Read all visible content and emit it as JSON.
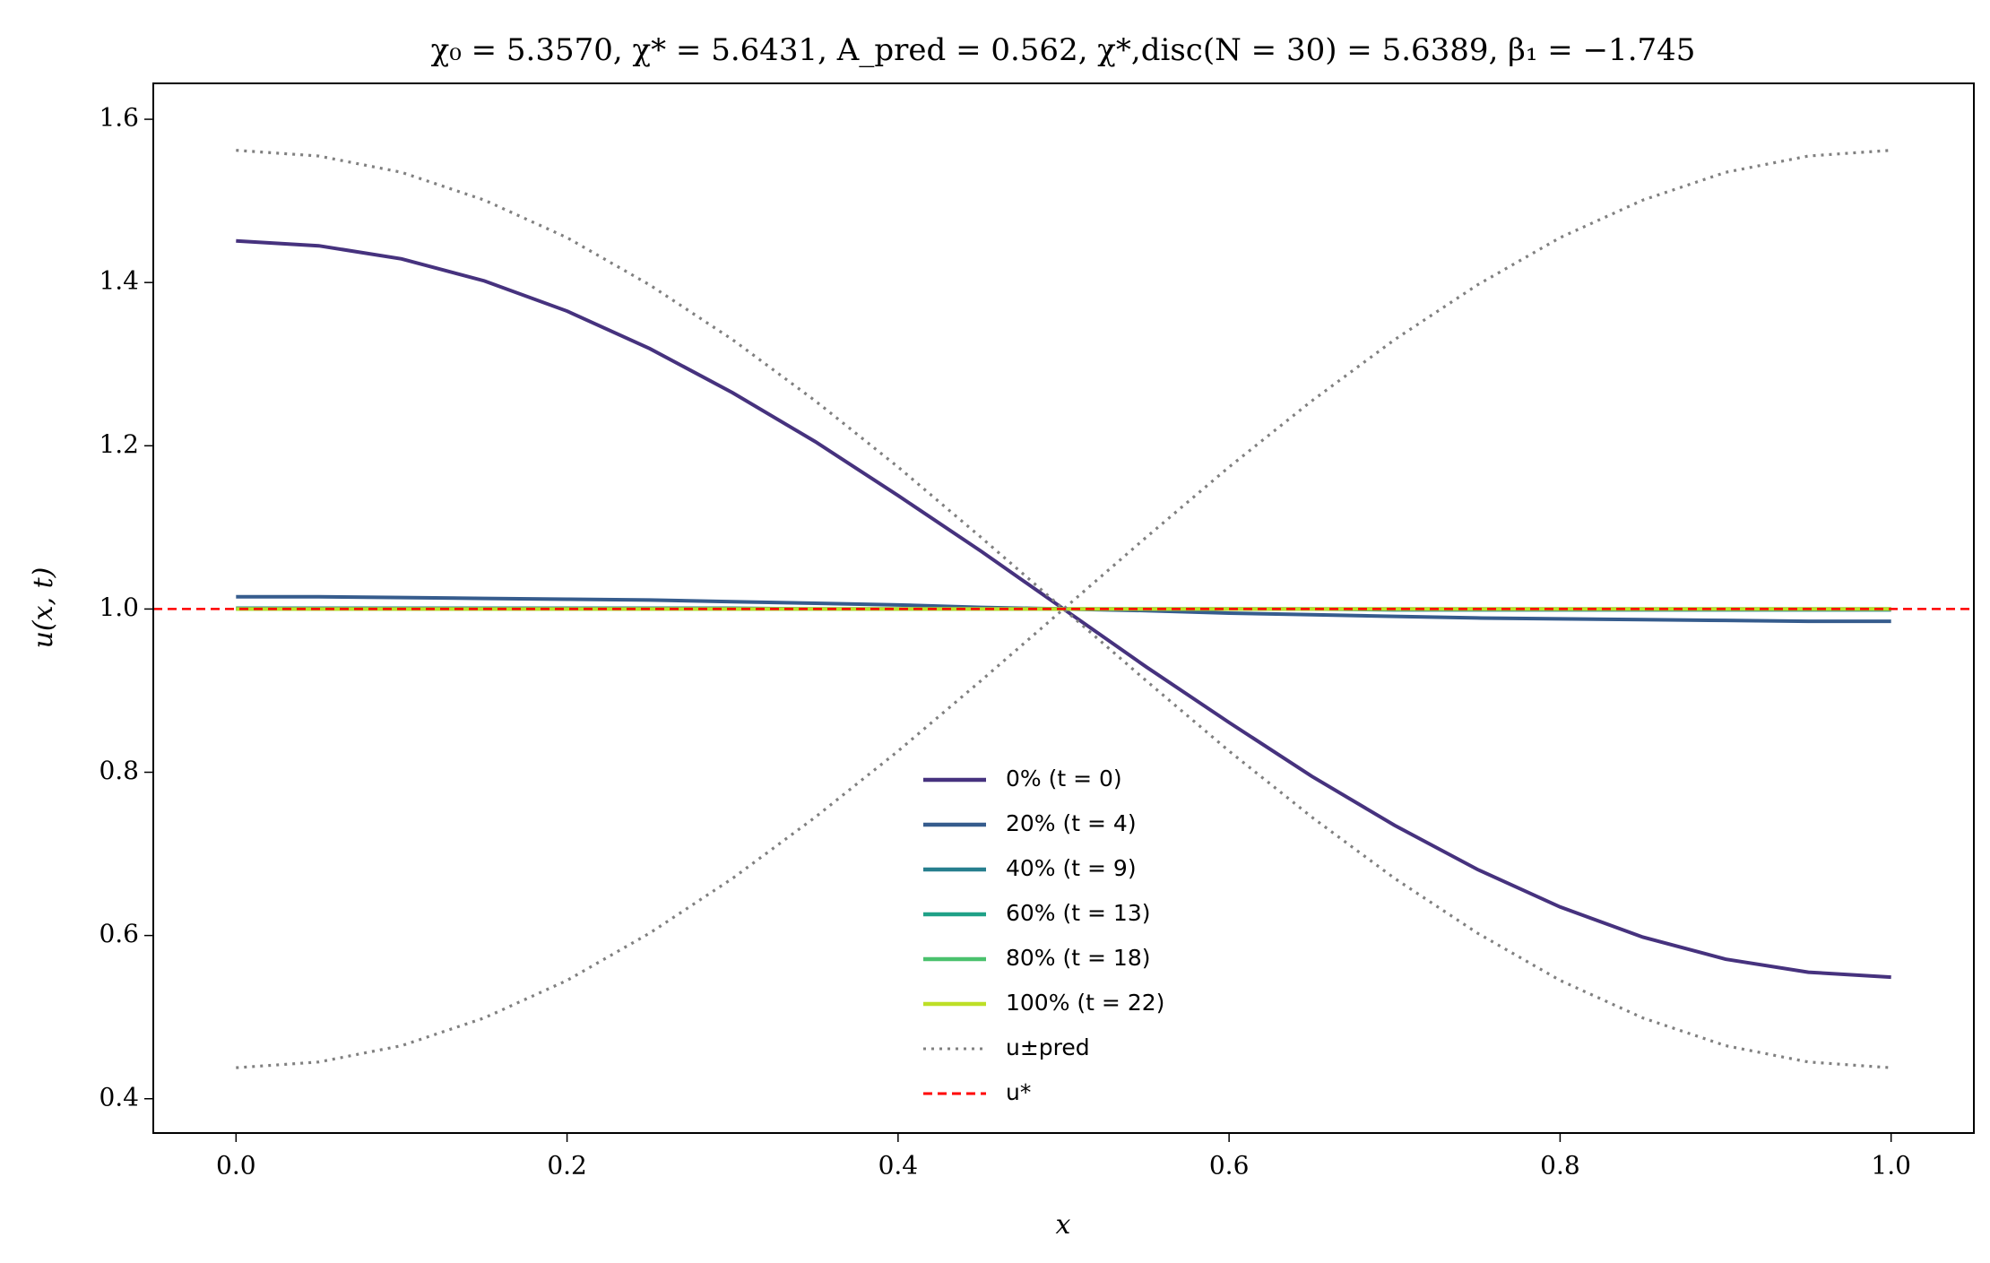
{
  "chart_data": {
    "type": "line",
    "title": "χ₀ = 5.3570,  χ* = 5.6431,  A_pred = 0.562,  χ*,disc(N = 30) = 5.6389,  β₁ = −1.745",
    "x_label": "x",
    "y_label": "u(x, t)",
    "x": [
      0,
      0.05,
      0.1,
      0.15,
      0.2,
      0.25,
      0.3,
      0.35,
      0.4,
      0.45,
      0.5,
      0.55,
      0.6,
      0.65,
      0.7,
      0.75,
      0.8,
      0.85,
      0.9,
      0.95,
      1
    ],
    "series": [
      {
        "name": "0% (t = 0)",
        "color": "#46327e",
        "style": "solid",
        "values": [
          1.451,
          1.445,
          1.429,
          1.402,
          1.365,
          1.319,
          1.265,
          1.205,
          1.139,
          1.071,
          1.0,
          0.929,
          0.861,
          0.795,
          0.735,
          0.681,
          0.635,
          0.598,
          0.571,
          0.555,
          0.549
        ]
      },
      {
        "name": "20% (t = 4)",
        "color": "#365c8d",
        "style": "solid",
        "values": [
          1.015,
          1.015,
          1.014,
          1.013,
          1.012,
          1.011,
          1.009,
          1.007,
          1.005,
          1.002,
          1.0,
          0.998,
          0.995,
          0.993,
          0.991,
          0.989,
          0.988,
          0.987,
          0.986,
          0.985,
          0.985
        ]
      },
      {
        "name": "40% (t = 9)",
        "color": "#277f8e",
        "style": "solid",
        "values": [
          1.001,
          1.001,
          1.001,
          1.001,
          1.001,
          1.001,
          1.001,
          1.0,
          1.0,
          1.0,
          1.0,
          1.0,
          1.0,
          1.0,
          0.999,
          0.999,
          0.999,
          0.999,
          0.999,
          0.999,
          0.999
        ]
      },
      {
        "name": "60% (t = 13)",
        "color": "#1fa187",
        "style": "solid",
        "values": [
          1.0,
          1.0,
          1.0,
          1.0,
          1.0,
          1.0,
          1.0,
          1.0,
          1.0,
          1.0,
          1.0,
          1.0,
          1.0,
          1.0,
          1.0,
          1.0,
          1.0,
          1.0,
          1.0,
          1.0,
          1.0
        ]
      },
      {
        "name": "80% (t = 18)",
        "color": "#4ac16d",
        "style": "solid",
        "values": [
          1.0,
          1.0,
          1.0,
          1.0,
          1.0,
          1.0,
          1.0,
          1.0,
          1.0,
          1.0,
          1.0,
          1.0,
          1.0,
          1.0,
          1.0,
          1.0,
          1.0,
          1.0,
          1.0,
          1.0,
          1.0
        ]
      },
      {
        "name": "100% (t = 22)",
        "color": "#bddf26",
        "style": "solid",
        "values": [
          1.0,
          1.0,
          1.0,
          1.0,
          1.0,
          1.0,
          1.0,
          1.0,
          1.0,
          1.0,
          1.0,
          1.0,
          1.0,
          1.0,
          1.0,
          1.0,
          1.0,
          1.0,
          1.0,
          1.0,
          1.0
        ]
      },
      {
        "name": "u±pred",
        "color": "#808080",
        "style": "dotted",
        "values": [
          1.562,
          1.555,
          1.535,
          1.501,
          1.455,
          1.397,
          1.33,
          1.255,
          1.174,
          1.088,
          1.0,
          0.912,
          0.826,
          0.745,
          0.67,
          0.603,
          0.545,
          0.499,
          0.465,
          0.445,
          0.438
        ],
        "values_lower": [
          0.438,
          0.445,
          0.465,
          0.499,
          0.545,
          0.603,
          0.67,
          0.745,
          0.826,
          0.912,
          1.0,
          1.088,
          1.174,
          1.255,
          1.33,
          1.397,
          1.455,
          1.501,
          1.535,
          1.555,
          1.562
        ]
      },
      {
        "name": "u*",
        "color": "#ff0000",
        "style": "dashed",
        "hline": 1.0
      }
    ],
    "xlim": [
      -0.05,
      1.05
    ],
    "ylim": [
      0.358,
      1.644
    ],
    "xticks": [
      {
        "value": 0,
        "label": "0.0"
      },
      0.2,
      0.4,
      0.6,
      0.8,
      {
        "value": 1,
        "label": "1.0"
      }
    ],
    "yticks": [
      0.4,
      0.6,
      0.8,
      {
        "value": 1,
        "label": "1.0"
      },
      1.2,
      1.4,
      1.6
    ],
    "grid": false,
    "legend": "lower center"
  }
}
